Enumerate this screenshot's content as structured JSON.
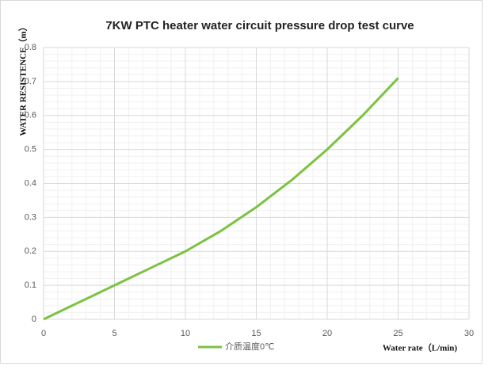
{
  "chart_data": {
    "type": "line",
    "title": "7KW PTC heater water circuit pressure drop test curve",
    "x_label": "Water rate（L/min)",
    "y_label": "WATER RESISTENCE（m）",
    "x": [
      0,
      2.5,
      5,
      7.5,
      10,
      12.5,
      15,
      17.5,
      20,
      22.5,
      25
    ],
    "series": [
      {
        "name": "介质温度0℃",
        "color": "#7dc242",
        "values": [
          0,
          0.05,
          0.1,
          0.15,
          0.2,
          0.26,
          0.33,
          0.41,
          0.5,
          0.6,
          0.71
        ]
      }
    ],
    "xlim": [
      0,
      30
    ],
    "xticks": [
      0,
      5,
      10,
      15,
      20,
      25,
      30
    ],
    "ylim": [
      0,
      0.8
    ],
    "yticks": [
      0,
      0.1,
      0.2,
      0.3,
      0.4,
      0.5,
      0.6,
      0.7,
      0.8
    ],
    "grid": true,
    "minor_grid": true,
    "legend": "bottom"
  }
}
